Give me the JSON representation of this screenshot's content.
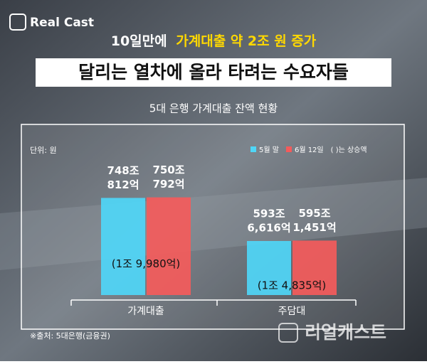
{
  "brand": "Real Cast",
  "watermark": "리얼캐스트",
  "chart_data": {
    "type": "bar",
    "headline_prefix": "10일만에",
    "headline_highlight": "가계대출 약 2조 원 증가",
    "title": "달리는 열차에 올라 타려는 수요자들",
    "subtitle": "5대 은행 가계대출 잔액 현황",
    "unit_note": "단위: 원",
    "legend_note": "( )는 상승액",
    "source": "※출처: 5대은행(금융권)",
    "categories": [
      "가계대출",
      "주담대"
    ],
    "ylim": [
      4000000,
      8000000
    ],
    "series": [
      {
        "name": "5월 말",
        "color": "#4fd6f7",
        "values": [
          7480812,
          5936616
        ],
        "value_labels": [
          [
            "748조",
            "812억"
          ],
          [
            "593조",
            "6,616억"
          ]
        ]
      },
      {
        "name": "6월 12일",
        "color": "#f45b5b",
        "values": [
          7500792,
          5951451
        ],
        "value_labels": [
          [
            "750조",
            "792억"
          ],
          [
            "595조",
            "1,451억"
          ]
        ]
      }
    ],
    "annotations": [
      "(1조 9,980억)",
      "(1조 4,835억)"
    ]
  }
}
